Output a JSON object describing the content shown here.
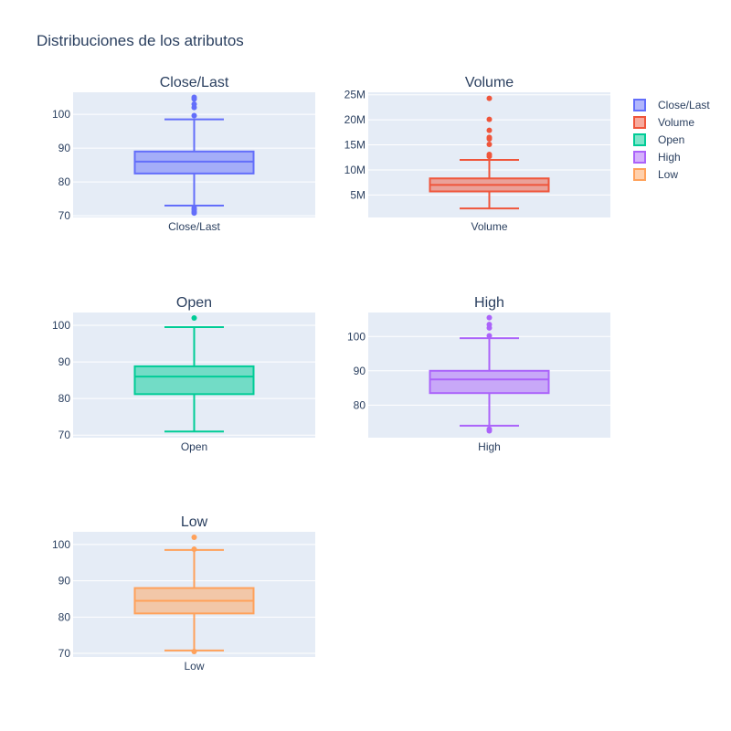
{
  "figure": {
    "title": "Distribuciones de los atributos"
  },
  "chart_data": [
    {
      "type": "box",
      "title": "Close/Last",
      "category": "Close/Last",
      "color": "#636efa",
      "ylim": [
        69.5,
        106.5
      ],
      "yticks": [
        70,
        80,
        90,
        100
      ],
      "ytick_labels": [
        "70",
        "80",
        "90",
        "100"
      ],
      "min": 73,
      "q1": 82.5,
      "median": 86,
      "q3": 89,
      "max": 98.5,
      "outliers": [
        105,
        104.5,
        103,
        102,
        99.6,
        72.3,
        71.8,
        71.2,
        70.8
      ],
      "grid": true
    },
    {
      "type": "box",
      "title": "Volume",
      "category": "Volume",
      "color": "#ef553b",
      "ylim": [
        500000,
        25500000
      ],
      "yticks": [
        5000000,
        10000000,
        15000000,
        20000000,
        25000000
      ],
      "ytick_labels": [
        "5M",
        "10M",
        "15M",
        "20M",
        "25M"
      ],
      "min": 2300000,
      "q1": 5700000,
      "median": 7000000,
      "q3": 8300000,
      "max": 12000000,
      "outliers": [
        24300000,
        20100000,
        17900000,
        16500000,
        16200000,
        15100000,
        13100000,
        12700000
      ],
      "grid": true
    },
    {
      "type": "box",
      "title": "Open",
      "category": "Open",
      "color": "#00cc96",
      "ylim": [
        69.3,
        103.5
      ],
      "yticks": [
        70,
        80,
        90,
        100
      ],
      "ytick_labels": [
        "70",
        "80",
        "90",
        "100"
      ],
      "min": 71,
      "q1": 81.2,
      "median": 86,
      "q3": 88.8,
      "max": 99.5,
      "outliers": [
        102
      ],
      "grid": true
    },
    {
      "type": "box",
      "title": "High",
      "category": "High",
      "color": "#ab63fa",
      "ylim": [
        70.5,
        107.0
      ],
      "yticks": [
        80,
        90,
        100
      ],
      "ytick_labels": [
        "80",
        "90",
        "100"
      ],
      "min": 74,
      "q1": 83.5,
      "median": 87.5,
      "q3": 90,
      "max": 99.5,
      "outliers": [
        105.5,
        103.5,
        102.5,
        100.2,
        73,
        72.5
      ],
      "grid": true
    },
    {
      "type": "box",
      "title": "Low",
      "category": "Low",
      "color": "#ffa15a",
      "ylim": [
        69.0,
        103.5
      ],
      "yticks": [
        70,
        80,
        90,
        100
      ],
      "ytick_labels": [
        "70",
        "80",
        "90",
        "100"
      ],
      "min": 70.8,
      "q1": 81,
      "median": 84.5,
      "q3": 88,
      "max": 98.5,
      "outliers": [
        102,
        98.7,
        70.5
      ],
      "grid": true
    }
  ],
  "legend": {
    "placement": "right",
    "items": [
      {
        "label": "Close/Last",
        "color": "#636efa"
      },
      {
        "label": "Volume",
        "color": "#ef553b"
      },
      {
        "label": "Open",
        "color": "#00cc96"
      },
      {
        "label": "High",
        "color": "#ab63fa"
      },
      {
        "label": "Low",
        "color": "#ffa15a"
      }
    ]
  }
}
